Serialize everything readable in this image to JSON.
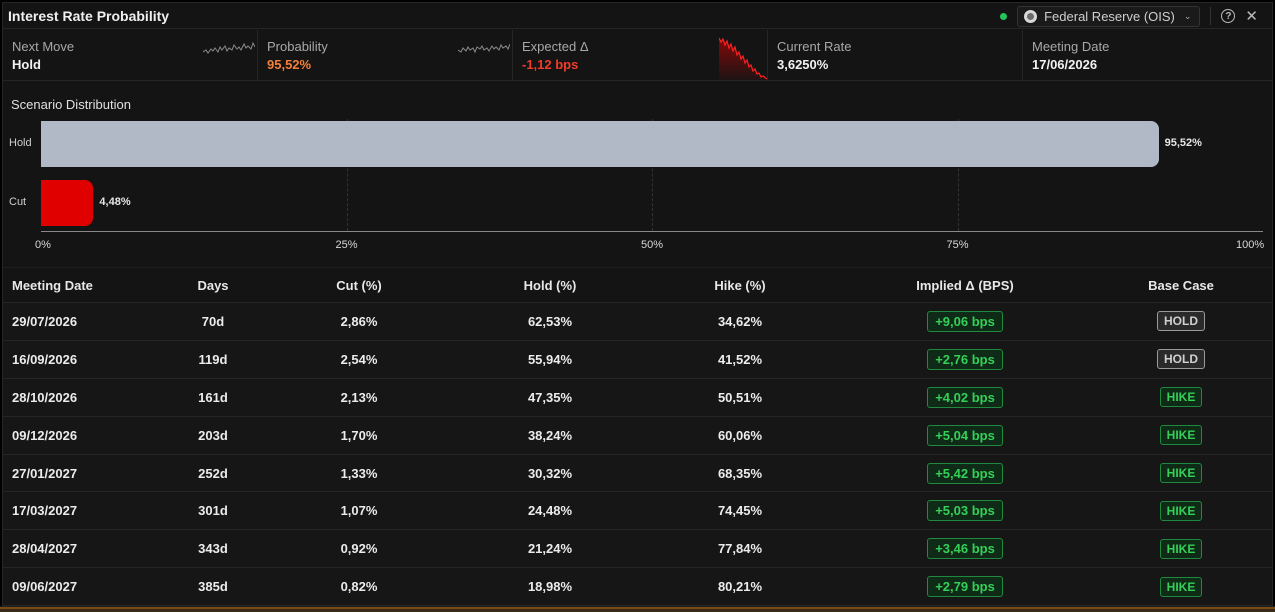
{
  "window": {
    "title": "Interest Rate Probability"
  },
  "toolbar": {
    "source_label": "Federal Reserve (OIS)",
    "status_color": "#22c55e",
    "help_glyph": "?",
    "close_glyph": "✕"
  },
  "metrics": [
    {
      "label": "Next Move",
      "value": "Hold"
    },
    {
      "label": "Probability",
      "value": "95,52%"
    },
    {
      "label": "Expected Δ",
      "value": "-1,12 bps"
    },
    {
      "label": "Current Rate",
      "value": "3,6250%"
    },
    {
      "label": "Meeting Date",
      "value": "17/06/2026"
    }
  ],
  "distribution": {
    "title": "Scenario Distribution",
    "scenarios": [
      {
        "label": "Hold",
        "value": 95.52,
        "display": "95,52%",
        "color": "#b2b9c6"
      },
      {
        "label": "Cut",
        "value": 4.48,
        "display": "4,48%",
        "color": "#e00000"
      }
    ],
    "ticks": [
      "0%",
      "25%",
      "50%",
      "75%",
      "100%"
    ],
    "max": 100
  },
  "table": {
    "headers": [
      "Meeting Date",
      "Days",
      "Cut (%)",
      "Hold (%)",
      "Hike (%)",
      "Implied Δ (BPS)",
      "Base Case"
    ],
    "rows": [
      {
        "date": "29/07/2026",
        "days": "70d",
        "cut": "2,86%",
        "hold": "62,53%",
        "hike": "34,62%",
        "implied": "+9,06 bps",
        "base": "HOLD"
      },
      {
        "date": "16/09/2026",
        "days": "119d",
        "cut": "2,54%",
        "hold": "55,94%",
        "hike": "41,52%",
        "implied": "+2,76 bps",
        "base": "HOLD"
      },
      {
        "date": "28/10/2026",
        "days": "161d",
        "cut": "2,13%",
        "hold": "47,35%",
        "hike": "50,51%",
        "implied": "+4,02 bps",
        "base": "HIKE"
      },
      {
        "date": "09/12/2026",
        "days": "203d",
        "cut": "1,70%",
        "hold": "38,24%",
        "hike": "60,06%",
        "implied": "+5,04 bps",
        "base": "HIKE"
      },
      {
        "date": "27/01/2027",
        "days": "252d",
        "cut": "1,33%",
        "hold": "30,32%",
        "hike": "68,35%",
        "implied": "+5,42 bps",
        "base": "HIKE"
      },
      {
        "date": "17/03/2027",
        "days": "301d",
        "cut": "1,07%",
        "hold": "24,48%",
        "hike": "74,45%",
        "implied": "+5,03 bps",
        "base": "HIKE"
      },
      {
        "date": "28/04/2027",
        "days": "343d",
        "cut": "0,92%",
        "hold": "21,24%",
        "hike": "77,84%",
        "implied": "+3,46 bps",
        "base": "HIKE"
      },
      {
        "date": "09/06/2027",
        "days": "385d",
        "cut": "0,82%",
        "hold": "18,98%",
        "hike": "80,21%",
        "implied": "+2,79 bps",
        "base": "HIKE"
      }
    ]
  }
}
